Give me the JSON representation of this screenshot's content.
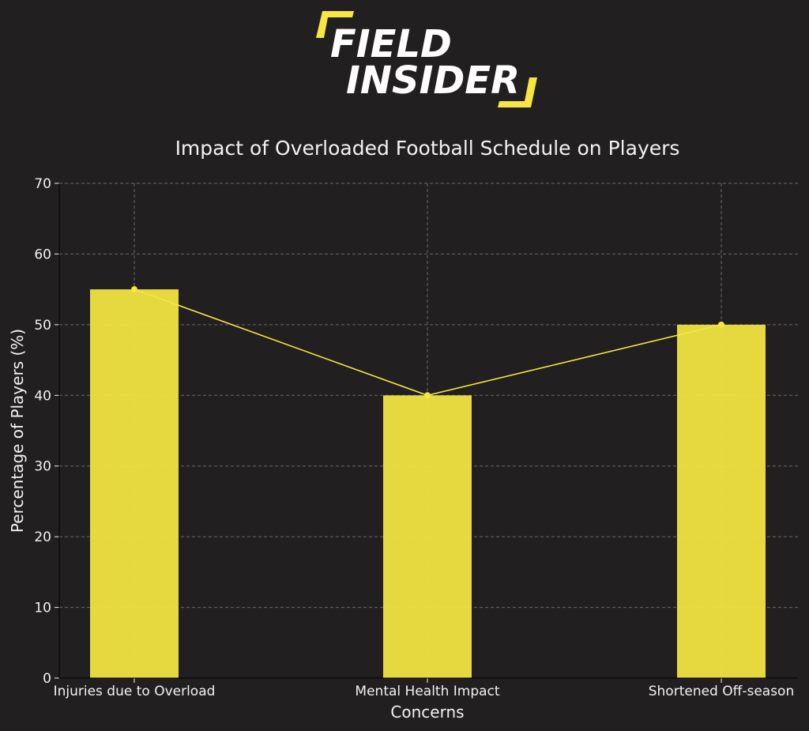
{
  "logo": {
    "line1": "FIELD",
    "line2": "INSIDER",
    "accent_color": "#f5e642"
  },
  "chart_data": {
    "type": "bar",
    "title": "Impact of Overloaded Football Schedule on Players",
    "xlabel": "Concerns",
    "ylabel": "Percentage of Players (%)",
    "categories": [
      "Injuries due to Overload",
      "Mental Health Impact",
      "Shortened Off-season"
    ],
    "values": [
      55,
      40,
      50
    ],
    "overlay_line": true,
    "ylim": [
      0,
      70
    ],
    "yticks": [
      0,
      10,
      20,
      30,
      40,
      50,
      60,
      70
    ],
    "grid": true,
    "colors": {
      "background": "#221f20",
      "bar": "#f5e642",
      "line": "#f5e642",
      "text": "#f2f2f2",
      "grid": "#6a6a6a"
    }
  }
}
